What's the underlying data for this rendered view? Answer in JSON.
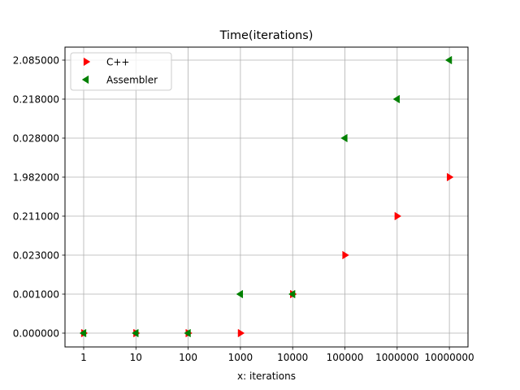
{
  "chart_data": {
    "type": "scatter",
    "title": "Time(iterations)",
    "xlabel": "x: iterations",
    "ylabel": "",
    "categories": [
      "1",
      "10",
      "100",
      "1000",
      "10000",
      "100000",
      "1000000",
      "10000000"
    ],
    "y_categories": [
      "0.000000",
      "0.001000",
      "0.023000",
      "0.211000",
      "1.982000",
      "0.028000",
      "0.218000",
      "2.085000"
    ],
    "grid": true,
    "legend_position": "upper-left",
    "series": [
      {
        "name": "C++",
        "marker": "triangle-right",
        "color": "#ff0000",
        "x": [
          "1",
          "10",
          "100",
          "1000",
          "10000",
          "100000",
          "1000000",
          "10000000"
        ],
        "y": [
          "0.000000",
          "0.000000",
          "0.000000",
          "0.000000",
          "0.001000",
          "0.023000",
          "0.211000",
          "1.982000"
        ]
      },
      {
        "name": "Assembler",
        "marker": "triangle-left",
        "color": "#008000",
        "x": [
          "1",
          "10",
          "100",
          "1000",
          "10000",
          "100000",
          "1000000",
          "10000000"
        ],
        "y": [
          "0.000000",
          "0.000000",
          "0.000000",
          "0.001000",
          "0.001000",
          "0.028000",
          "0.218000",
          "2.085000"
        ]
      }
    ]
  }
}
